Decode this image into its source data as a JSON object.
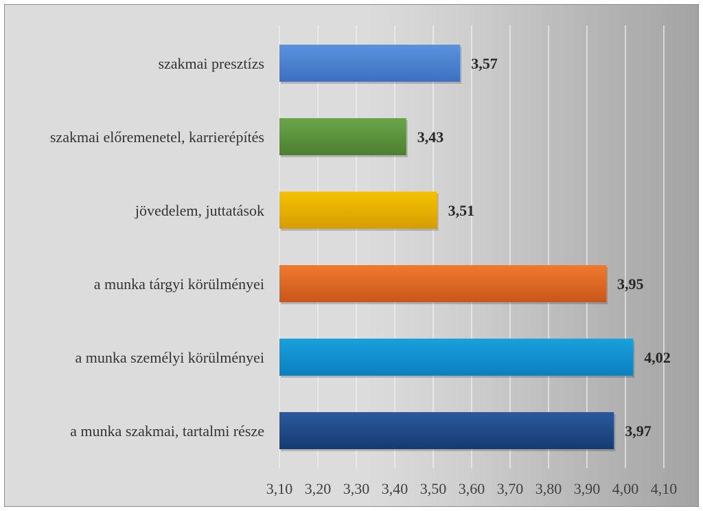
{
  "chart_data": {
    "type": "bar",
    "orientation": "horizontal",
    "title": "",
    "xlabel": "",
    "ylabel": "",
    "categories": [
      "szakmai presztízs",
      "szakmai előremenetel, karrierépítés",
      "jövedelem, juttatások",
      "a munka tárgyi körülményei",
      "a munka személyi körülményei",
      "a munka szakmai, tartalmi része"
    ],
    "values": [
      3.57,
      3.43,
      3.51,
      3.95,
      4.02,
      3.97
    ],
    "value_labels": [
      "3,57",
      "3,43",
      "3,51",
      "3,95",
      "4,02",
      "3,97"
    ],
    "xlim": [
      3.1,
      4.1
    ],
    "x_ticks": [
      3.1,
      3.2,
      3.3,
      3.4,
      3.5,
      3.6,
      3.7,
      3.8,
      3.9,
      4.0,
      4.1
    ],
    "x_tick_labels": [
      "3,10",
      "3,20",
      "3,30",
      "3,40",
      "3,50",
      "3,60",
      "3,70",
      "3,80",
      "3,90",
      "4,00",
      "4,10"
    ],
    "grid": true,
    "legend": "none",
    "bar_colors": [
      [
        "#5a93dc",
        "#3d6fc2"
      ],
      [
        "#6aa54a",
        "#4c8030"
      ],
      [
        "#f6c200",
        "#d49d00"
      ],
      [
        "#ef7a2e",
        "#c9561a"
      ],
      [
        "#1aa0dc",
        "#0b7fc0"
      ],
      [
        "#2a5a9c",
        "#163a72"
      ]
    ],
    "background_gradient": [
      "#dcdcdc",
      "#a3a3a3"
    ]
  }
}
